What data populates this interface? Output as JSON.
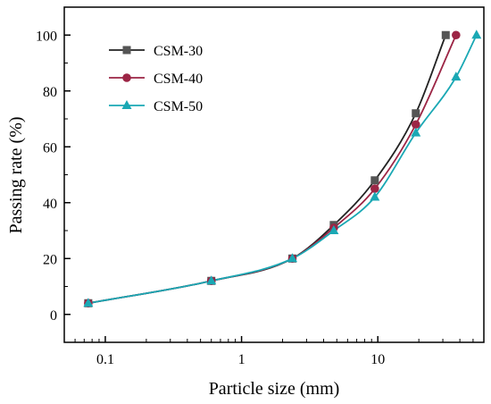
{
  "chart_data": {
    "type": "line",
    "xlabel": "Particle size (mm)",
    "ylabel": "Passing rate (%)",
    "xscale": "log",
    "xlim": [
      0.05,
      60
    ],
    "ylim": [
      -10,
      110
    ],
    "xticks": [
      {
        "value": 0.1,
        "label": "0.1"
      },
      {
        "value": 1,
        "label": "1"
      },
      {
        "value": 10,
        "label": "10"
      }
    ],
    "yticks": [
      {
        "value": 0,
        "label": "0"
      },
      {
        "value": 20,
        "label": "20"
      },
      {
        "value": 40,
        "label": "40"
      },
      {
        "value": 60,
        "label": "60"
      },
      {
        "value": 80,
        "label": "80"
      },
      {
        "value": 100,
        "label": "100"
      }
    ],
    "grid": false,
    "legend_position": "top-left",
    "series": [
      {
        "name": "CSM-30",
        "color": "#222222",
        "marker_color": "#555555",
        "marker": "square",
        "x": [
          0.075,
          0.6,
          2.36,
          4.75,
          9.5,
          19,
          31.5
        ],
        "y": [
          4,
          12,
          20,
          32,
          48,
          72,
          100
        ]
      },
      {
        "name": "CSM-40",
        "color": "#9c2545",
        "marker_color": "#9c2545",
        "marker": "circle",
        "x": [
          0.075,
          0.6,
          2.36,
          4.75,
          9.5,
          19,
          37.5
        ],
        "y": [
          4,
          12,
          20,
          31,
          45,
          68,
          100
        ]
      },
      {
        "name": "CSM-50",
        "color": "#1aa8b4",
        "marker_color": "#1aa8b4",
        "marker": "triangle",
        "x": [
          0.075,
          0.6,
          2.36,
          4.75,
          9.5,
          19,
          37.5,
          53
        ],
        "y": [
          4,
          12,
          20,
          30,
          42,
          65,
          85,
          100
        ]
      }
    ]
  }
}
